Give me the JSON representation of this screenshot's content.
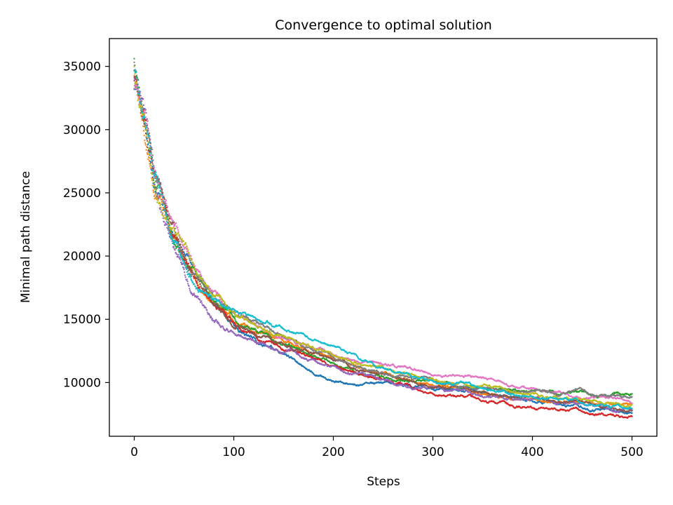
{
  "chart_data": {
    "type": "scatter",
    "title": "Convergence to optimal solution",
    "xlabel": "Steps",
    "ylabel": "Minimal path distance",
    "xlim": [
      -25,
      525
    ],
    "ylim": [
      5750,
      37200
    ],
    "xticks": [
      0,
      100,
      200,
      300,
      400,
      500
    ],
    "yticks": [
      10000,
      15000,
      20000,
      25000,
      30000,
      35000
    ],
    "grid": false,
    "legend": "none",
    "x": [
      0,
      10,
      20,
      30,
      40,
      50,
      60,
      70,
      80,
      90,
      100,
      125,
      150,
      175,
      200,
      225,
      250,
      275,
      300,
      350,
      400,
      450,
      500
    ],
    "series": [
      {
        "color": "#1f77b4",
        "values": [
          33500,
          30200,
          25900,
          23200,
          21300,
          20100,
          19100,
          17800,
          16200,
          15300,
          14500,
          13200,
          12300,
          10900,
          10100,
          9900,
          9700,
          9700,
          9700,
          9300,
          8600,
          8000,
          7600
        ]
      },
      {
        "color": "#ff7f0e",
        "values": [
          34500,
          30200,
          26500,
          24300,
          22000,
          20200,
          18900,
          17600,
          16600,
          15900,
          15200,
          14300,
          13400,
          12500,
          11800,
          11200,
          10700,
          10200,
          9800,
          9200,
          8700,
          8400,
          8200
        ]
      },
      {
        "color": "#2ca02c",
        "values": [
          35800,
          30400,
          26100,
          23600,
          21700,
          20100,
          18600,
          17400,
          16400,
          15600,
          14900,
          13900,
          13000,
          12200,
          11500,
          10700,
          10300,
          10000,
          9800,
          9500,
          9300,
          9100,
          9000
        ]
      },
      {
        "color": "#d62728",
        "values": [
          34000,
          30100,
          26400,
          23800,
          21600,
          19900,
          18500,
          17300,
          16300,
          15500,
          14800,
          13700,
          12700,
          11900,
          11300,
          10500,
          10000,
          9600,
          9100,
          8600,
          8200,
          7700,
          7200
        ]
      },
      {
        "color": "#9467bd",
        "values": [
          34200,
          29900,
          25700,
          23000,
          21100,
          19400,
          17600,
          16300,
          15200,
          14600,
          14100,
          13200,
          12500,
          11800,
          11100,
          10500,
          10100,
          9800,
          9500,
          9000,
          8600,
          8200,
          7700
        ]
      },
      {
        "color": "#8c564b",
        "values": [
          34700,
          30600,
          26400,
          23900,
          21800,
          20100,
          18800,
          17600,
          16600,
          15800,
          15100,
          14100,
          13100,
          12300,
          11700,
          11100,
          10600,
          10200,
          9800,
          9300,
          8800,
          8300,
          7900
        ]
      },
      {
        "color": "#e377c2",
        "values": [
          33200,
          30300,
          26700,
          24200,
          22000,
          20300,
          19000,
          17800,
          16800,
          16000,
          15300,
          14400,
          13500,
          12800,
          12200,
          11800,
          11500,
          11100,
          10800,
          10300,
          9500,
          8900,
          8600
        ]
      },
      {
        "color": "#7f7f7f",
        "values": [
          35200,
          30800,
          26800,
          24300,
          22100,
          20400,
          19000,
          17900,
          16900,
          16100,
          15400,
          14400,
          13500,
          12700,
          12000,
          11400,
          10800,
          10300,
          9900,
          9500,
          9300,
          9100,
          8800
        ]
      },
      {
        "color": "#bcbd22",
        "values": [
          34800,
          30700,
          27000,
          24100,
          22100,
          20600,
          19400,
          18000,
          17000,
          16200,
          15500,
          14600,
          13800,
          12900,
          12300,
          11700,
          11200,
          10700,
          10300,
          9700,
          9100,
          8600,
          8300
        ]
      },
      {
        "color": "#17becf",
        "values": [
          34400,
          30300,
          26200,
          23400,
          21500,
          20000,
          18600,
          17600,
          16800,
          16300,
          16000,
          15300,
          14200,
          13500,
          12900,
          12000,
          11100,
          10600,
          10200,
          9600,
          9000,
          8400,
          8000
        ]
      }
    ]
  }
}
